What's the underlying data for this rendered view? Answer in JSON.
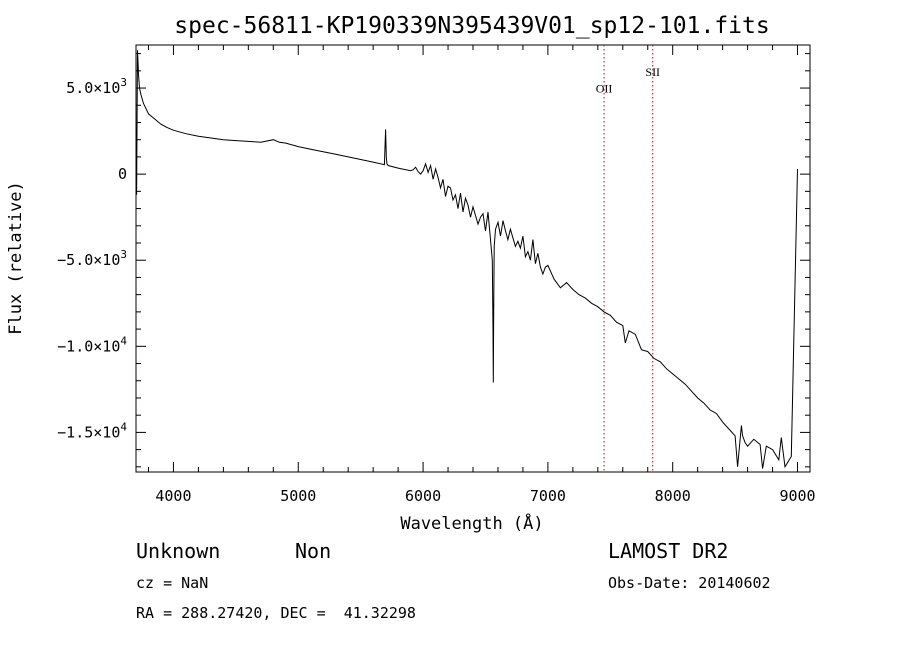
{
  "chart_data": {
    "type": "line",
    "title": "spec-56811-KP190339N395439V01_sp12-101.fits",
    "xlabel": "Wavelength (Å)",
    "ylabel": "Flux (relative)",
    "xlim": [
      3700,
      9100
    ],
    "ylim": [
      -17300,
      7500
    ],
    "xticks": [
      {
        "value": 4000,
        "label": "4000"
      },
      {
        "value": 5000,
        "label": "5000"
      },
      {
        "value": 6000,
        "label": "6000"
      },
      {
        "value": 7000,
        "label": "7000"
      },
      {
        "value": 8000,
        "label": "8000"
      },
      {
        "value": 9000,
        "label": "9000"
      }
    ],
    "yticks": [
      {
        "value": 5000,
        "mant": "5.0×10",
        "exp": "3"
      },
      {
        "value": 0,
        "mant": "0",
        "exp": ""
      },
      {
        "value": -5000,
        "mant": "−5.0×10",
        "exp": "3"
      },
      {
        "value": -10000,
        "mant": "−1.0×10",
        "exp": "4"
      },
      {
        "value": -15000,
        "mant": "−1.5×10",
        "exp": "4"
      }
    ],
    "grid": false,
    "series": [
      {
        "color": "#000000",
        "x": [
          3705,
          3712,
          3720,
          3728,
          3740,
          3760,
          3780,
          3800,
          3850,
          3900,
          3950,
          4000,
          4100,
          4200,
          4300,
          4400,
          4500,
          4600,
          4700,
          4800,
          4850,
          4900,
          5000,
          5100,
          5200,
          5300,
          5400,
          5500,
          5600,
          5690,
          5700,
          5705,
          5710,
          5720,
          5800,
          5900,
          5920,
          5940,
          5960,
          5980,
          6000,
          6020,
          6040,
          6060,
          6080,
          6100,
          6120,
          6140,
          6160,
          6180,
          6200,
          6220,
          6240,
          6260,
          6280,
          6300,
          6320,
          6340,
          6360,
          6380,
          6400,
          6420,
          6440,
          6460,
          6480,
          6500,
          6520,
          6540,
          6555,
          6560,
          6563,
          6566,
          6570,
          6580,
          6600,
          6620,
          6640,
          6660,
          6680,
          6700,
          6720,
          6740,
          6760,
          6780,
          6800,
          6820,
          6840,
          6860,
          6880,
          6900,
          6920,
          6940,
          6960,
          6980,
          7000,
          7050,
          7100,
          7150,
          7200,
          7250,
          7300,
          7350,
          7400,
          7450,
          7500,
          7550,
          7600,
          7620,
          7650,
          7700,
          7750,
          7800,
          7850,
          7900,
          7950,
          8000,
          8050,
          8100,
          8150,
          8200,
          8250,
          8300,
          8350,
          8400,
          8450,
          8500,
          8520,
          8550,
          8560,
          8580,
          8600,
          8650,
          8700,
          8720,
          8750,
          8800,
          8850,
          8870,
          8900,
          8950,
          9000
        ],
        "y": [
          -1200,
          7200,
          5800,
          5000,
          4600,
          4100,
          3800,
          3500,
          3200,
          2900,
          2700,
          2550,
          2350,
          2200,
          2100,
          2000,
          1950,
          1900,
          1850,
          2000,
          1850,
          1800,
          1600,
          1450,
          1300,
          1150,
          1000,
          850,
          700,
          550,
          2600,
          1000,
          600,
          500,
          350,
          200,
          250,
          400,
          150,
          0,
          200,
          600,
          100,
          500,
          -300,
          300,
          -200,
          -800,
          -300,
          -1300,
          -700,
          -800,
          -1500,
          -1200,
          -2000,
          -1100,
          -2200,
          -1400,
          -1800,
          -2500,
          -1900,
          -2400,
          -2900,
          -2500,
          -2300,
          -3300,
          -2200,
          -3800,
          -5000,
          -9000,
          -12100,
          -8000,
          -4200,
          -3200,
          -2800,
          -3600,
          -2700,
          -3300,
          -3800,
          -3200,
          -3700,
          -4200,
          -3900,
          -4300,
          -3600,
          -4800,
          -4500,
          -5000,
          -3800,
          -5200,
          -4600,
          -5400,
          -5800,
          -5400,
          -5300,
          -6100,
          -6600,
          -6300,
          -6700,
          -7000,
          -7200,
          -7500,
          -7700,
          -8000,
          -8200,
          -8600,
          -8800,
          -9800,
          -9100,
          -9300,
          -10200,
          -10300,
          -10700,
          -10900,
          -11300,
          -11600,
          -11900,
          -12200,
          -12600,
          -13000,
          -13300,
          -13700,
          -13900,
          -14400,
          -14800,
          -15200,
          -17000,
          -14600,
          -15200,
          -15600,
          -15800,
          -15400,
          -15700,
          -17100,
          -15800,
          -16000,
          -16600,
          -15300,
          -17000,
          -16400,
          300
        ]
      }
    ],
    "annotations": [
      {
        "label": "OII",
        "x": 7450,
        "y": 4750
      },
      {
        "label": "SII",
        "x": 7840,
        "y": 5700
      }
    ]
  },
  "info": {
    "class_label": "Unknown",
    "subclass_label": "Non",
    "survey": "LAMOST DR2",
    "redshift": "cz = NaN",
    "obs_date": "Obs-Date: 20140602",
    "coords": "RA = 288.27420, DEC =  41.32298"
  },
  "colors": {
    "line": "#000000",
    "marker": "#d40000",
    "background": "#ffffff"
  }
}
